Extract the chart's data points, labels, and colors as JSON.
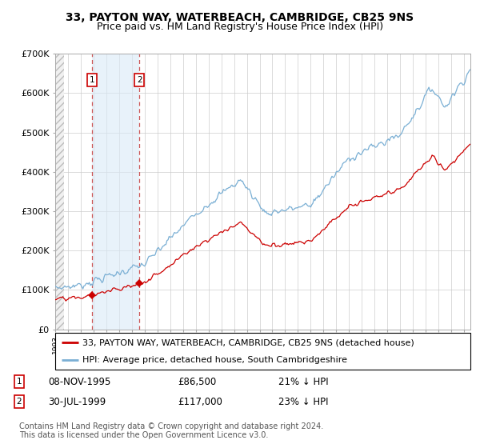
{
  "title": "33, PAYTON WAY, WATERBEACH, CAMBRIDGE, CB25 9NS",
  "subtitle": "Price paid vs. HM Land Registry's House Price Index (HPI)",
  "ylim": [
    0,
    700000
  ],
  "yticks": [
    0,
    100000,
    200000,
    300000,
    400000,
    500000,
    600000,
    700000
  ],
  "ytick_labels": [
    "£0",
    "£100K",
    "£200K",
    "£300K",
    "£400K",
    "£500K",
    "£600K",
    "£700K"
  ],
  "sale1_date": 1995.86,
  "sale1_price": 86500,
  "sale2_date": 1999.58,
  "sale2_price": 117000,
  "hpi_line_color": "#7aafd4",
  "price_line_color": "#cc0000",
  "marker_color": "#cc0000",
  "legend_label1": "33, PAYTON WAY, WATERBEACH, CAMBRIDGE, CB25 9NS (detached house)",
  "legend_label2": "HPI: Average price, detached house, South Cambridgeshire",
  "table_row1": [
    "1",
    "08-NOV-1995",
    "£86,500",
    "21% ↓ HPI"
  ],
  "table_row2": [
    "2",
    "30-JUL-1999",
    "£117,000",
    "23% ↓ HPI"
  ],
  "footnote": "Contains HM Land Registry data © Crown copyright and database right 2024.\nThis data is licensed under the Open Government Licence v3.0.",
  "bg_color": "#ffffff",
  "shade_color": "#daeaf7",
  "grid_color": "#cccccc",
  "x_min": 1993.0,
  "x_max": 2025.5,
  "title_fontsize": 10,
  "subtitle_fontsize": 9,
  "axis_fontsize": 8,
  "legend_fontsize": 8,
  "footnote_fontsize": 7
}
